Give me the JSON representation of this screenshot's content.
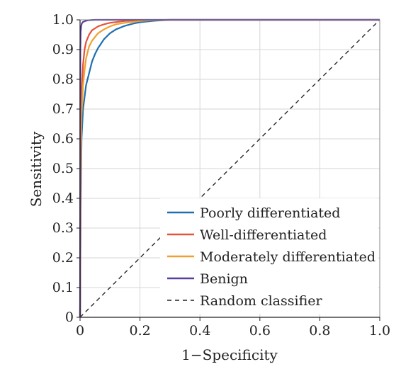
{
  "chart_data": {
    "type": "line",
    "title": "",
    "xlabel": "1−Specificity",
    "ylabel": "Sensitivity",
    "xlim": [
      0,
      1
    ],
    "ylim": [
      0,
      1
    ],
    "x_ticks": [
      "0",
      "0.2",
      "0.4",
      "0.6",
      "0.8",
      "1.0"
    ],
    "x_tick_values": [
      0,
      0.2,
      0.4,
      0.6,
      0.8,
      1.0
    ],
    "y_ticks": [
      "0",
      "0.1",
      "0.2",
      "0.3",
      "0.4",
      "0.5",
      "0.6",
      "0.7",
      "0.8",
      "0.9",
      "1.0"
    ],
    "y_tick_values": [
      0,
      0.1,
      0.2,
      0.3,
      0.4,
      0.5,
      0.6,
      0.7,
      0.8,
      0.9,
      1.0
    ],
    "grid": true,
    "legend_position": "bottom-right",
    "series": [
      {
        "name": "Poorly differentiated",
        "color": "#1f6fb0",
        "dash": "solid",
        "x": [
          0,
          0.002,
          0.005,
          0.01,
          0.015,
          0.02,
          0.03,
          0.04,
          0.05,
          0.06,
          0.07,
          0.08,
          0.1,
          0.12,
          0.15,
          0.18,
          0.2,
          0.25,
          0.3,
          0.4,
          0.6,
          0.8,
          1.0
        ],
        "y": [
          0,
          0.35,
          0.6,
          0.7,
          0.74,
          0.78,
          0.82,
          0.86,
          0.885,
          0.905,
          0.92,
          0.935,
          0.955,
          0.968,
          0.98,
          0.988,
          0.992,
          0.997,
          1.0,
          1.0,
          1.0,
          1.0,
          1.0
        ]
      },
      {
        "name": "Well-differentiated",
        "color": "#e5533a",
        "dash": "solid",
        "x": [
          0,
          0.002,
          0.005,
          0.01,
          0.015,
          0.02,
          0.03,
          0.04,
          0.06,
          0.08,
          0.1,
          0.15,
          0.2,
          0.3,
          0.6,
          1.0
        ],
        "y": [
          0,
          0.5,
          0.75,
          0.85,
          0.9,
          0.925,
          0.95,
          0.965,
          0.978,
          0.985,
          0.99,
          0.996,
          0.999,
          1.0,
          1.0,
          1.0
        ]
      },
      {
        "name": "Moderately differentiated",
        "color": "#f0a030",
        "dash": "solid",
        "x": [
          0,
          0.002,
          0.005,
          0.01,
          0.015,
          0.02,
          0.03,
          0.04,
          0.06,
          0.08,
          0.1,
          0.12,
          0.15,
          0.2,
          0.25,
          0.3,
          0.6,
          1.0
        ],
        "y": [
          0,
          0.45,
          0.68,
          0.78,
          0.83,
          0.87,
          0.91,
          0.93,
          0.955,
          0.968,
          0.978,
          0.985,
          0.99,
          0.996,
          0.999,
          1.0,
          1.0,
          1.0
        ]
      },
      {
        "name": "Benign",
        "color": "#5b3fa0",
        "dash": "solid",
        "x": [
          0,
          0.001,
          0.002,
          0.004,
          0.006,
          0.01,
          0.02,
          0.03,
          0.05,
          0.1,
          0.3,
          0.6,
          1.0
        ],
        "y": [
          0,
          0.9,
          0.96,
          0.98,
          0.988,
          0.993,
          0.997,
          0.999,
          1.0,
          1.0,
          1.0,
          1.0,
          1.0
        ]
      },
      {
        "name": "Random classifier",
        "color": "#222222",
        "dash": "dashed",
        "x": [
          0,
          1
        ],
        "y": [
          0,
          1
        ]
      }
    ]
  }
}
